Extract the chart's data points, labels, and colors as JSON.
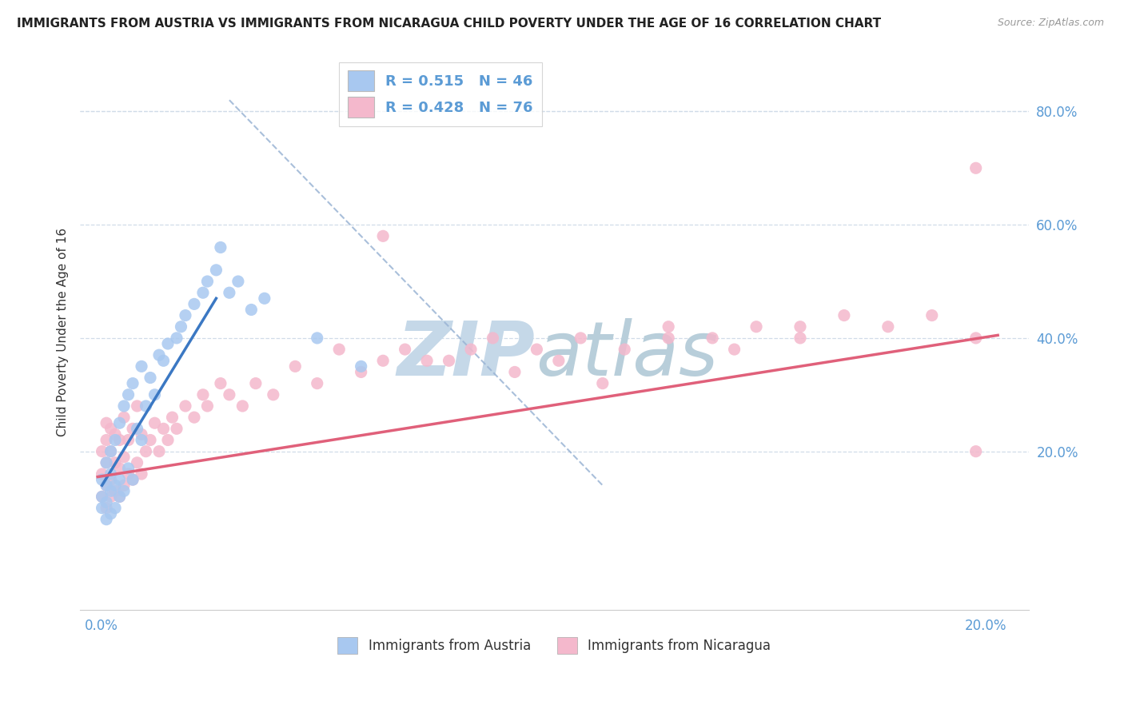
{
  "title": "IMMIGRANTS FROM AUSTRIA VS IMMIGRANTS FROM NICARAGUA CHILD POVERTY UNDER THE AGE OF 16 CORRELATION CHART",
  "source": "Source: ZipAtlas.com",
  "ylabel": "Child Poverty Under the Age of 16",
  "austria_R": 0.515,
  "austria_N": 46,
  "nicaragua_R": 0.428,
  "nicaragua_N": 76,
  "austria_color": "#a8c8f0",
  "nicaragua_color": "#f4b8cc",
  "austria_line_color": "#3b78c3",
  "nicaragua_line_color": "#e0607a",
  "diag_line_color": "#9ab4d4",
  "watermark_zip_color": "#c5d8e8",
  "watermark_atlas_color": "#b8ceda",
  "background_color": "#ffffff",
  "tick_color": "#5b9bd5",
  "y_ticks": [
    0.0,
    0.2,
    0.4,
    0.6,
    0.8
  ],
  "y_tick_labels": [
    "",
    "20.0%",
    "40.0%",
    "60.0%",
    "80.0%"
  ],
  "xlim": [
    -0.004,
    0.212
  ],
  "ylim": [
    -0.08,
    0.9
  ],
  "legend_austria_text": "R = 0.515   N = 46",
  "legend_nicaragua_text": "R = 0.428   N = 76",
  "austria_x": [
    0.001,
    0.001,
    0.001,
    0.002,
    0.002,
    0.002,
    0.002,
    0.003,
    0.003,
    0.003,
    0.003,
    0.004,
    0.004,
    0.004,
    0.005,
    0.005,
    0.005,
    0.006,
    0.006,
    0.007,
    0.007,
    0.008,
    0.008,
    0.009,
    0.01,
    0.01,
    0.011,
    0.012,
    0.013,
    0.014,
    0.015,
    0.016,
    0.018,
    0.019,
    0.02,
    0.022,
    0.024,
    0.025,
    0.027,
    0.028,
    0.03,
    0.032,
    0.035,
    0.038,
    0.05,
    0.06
  ],
  "austria_y": [
    0.1,
    0.12,
    0.15,
    0.08,
    0.11,
    0.14,
    0.18,
    0.09,
    0.13,
    0.16,
    0.2,
    0.1,
    0.14,
    0.22,
    0.12,
    0.15,
    0.25,
    0.13,
    0.28,
    0.17,
    0.3,
    0.15,
    0.32,
    0.24,
    0.22,
    0.35,
    0.28,
    0.33,
    0.3,
    0.37,
    0.36,
    0.39,
    0.4,
    0.42,
    0.44,
    0.46,
    0.48,
    0.5,
    0.52,
    0.56,
    0.48,
    0.5,
    0.45,
    0.47,
    0.4,
    0.35
  ],
  "nicaragua_x": [
    0.001,
    0.001,
    0.001,
    0.002,
    0.002,
    0.002,
    0.002,
    0.002,
    0.003,
    0.003,
    0.003,
    0.003,
    0.004,
    0.004,
    0.004,
    0.005,
    0.005,
    0.005,
    0.006,
    0.006,
    0.006,
    0.007,
    0.007,
    0.008,
    0.008,
    0.009,
    0.009,
    0.01,
    0.01,
    0.011,
    0.012,
    0.013,
    0.014,
    0.015,
    0.016,
    0.017,
    0.018,
    0.02,
    0.022,
    0.024,
    0.025,
    0.028,
    0.03,
    0.033,
    0.036,
    0.04,
    0.045,
    0.05,
    0.055,
    0.06,
    0.065,
    0.07,
    0.08,
    0.09,
    0.1,
    0.11,
    0.12,
    0.13,
    0.14,
    0.15,
    0.16,
    0.17,
    0.18,
    0.19,
    0.2,
    0.065,
    0.075,
    0.085,
    0.095,
    0.105,
    0.115,
    0.13,
    0.145,
    0.16,
    0.2,
    0.2
  ],
  "nicaragua_y": [
    0.12,
    0.16,
    0.2,
    0.1,
    0.14,
    0.18,
    0.22,
    0.25,
    0.12,
    0.15,
    0.2,
    0.24,
    0.13,
    0.18,
    0.23,
    0.12,
    0.17,
    0.22,
    0.14,
    0.19,
    0.26,
    0.16,
    0.22,
    0.15,
    0.24,
    0.18,
    0.28,
    0.16,
    0.23,
    0.2,
    0.22,
    0.25,
    0.2,
    0.24,
    0.22,
    0.26,
    0.24,
    0.28,
    0.26,
    0.3,
    0.28,
    0.32,
    0.3,
    0.28,
    0.32,
    0.3,
    0.35,
    0.32,
    0.38,
    0.34,
    0.36,
    0.38,
    0.36,
    0.4,
    0.38,
    0.4,
    0.38,
    0.42,
    0.4,
    0.42,
    0.4,
    0.44,
    0.42,
    0.44,
    0.7,
    0.58,
    0.36,
    0.38,
    0.34,
    0.36,
    0.32,
    0.4,
    0.38,
    0.42,
    0.4,
    0.2
  ]
}
